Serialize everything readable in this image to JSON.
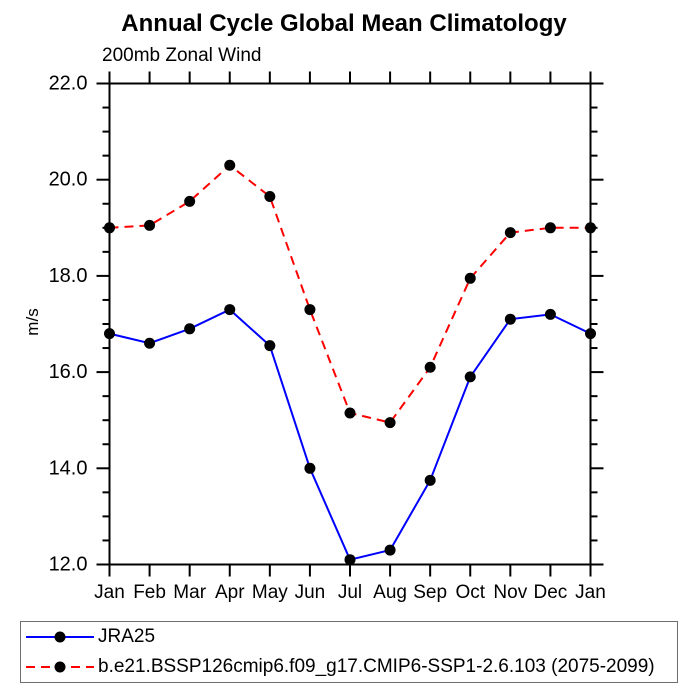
{
  "page": {
    "background": "#ffffff"
  },
  "chart_data": {
    "type": "line",
    "title": "Annual Cycle Global Mean Climatology",
    "subtitle": "200mb Zonal Wind",
    "ylabel": "m/s",
    "xlabel": "",
    "categories": [
      "Jan",
      "Feb",
      "Mar",
      "Apr",
      "May",
      "Jun",
      "Jul",
      "Aug",
      "Sep",
      "Oct",
      "Nov",
      "Dec",
      "Jan"
    ],
    "ylim": [
      12.0,
      22.0
    ],
    "ytick_major_values": [
      12,
      14,
      16,
      18,
      20,
      22
    ],
    "ytick_major_labels": [
      "12.0",
      "14.0",
      "16.0",
      "18.0",
      "20.0",
      "22.0"
    ],
    "ytick_minor_step": 0.5,
    "grid": false,
    "legend_position": "bottom",
    "axis_color": "#000000",
    "marker_color": "#000000",
    "series": [
      {
        "name": "JRA25",
        "color": "#0000ff",
        "line_style": "solid",
        "values": [
          16.8,
          16.6,
          16.9,
          17.3,
          16.55,
          14.0,
          12.1,
          12.3,
          13.75,
          15.9,
          17.1,
          17.2,
          16.8
        ]
      },
      {
        "name": "b.e21.BSSP126cmip6.f09_g17.CMIP6-SSP1-2.6.103 (2075-2099)",
        "color": "#ff0000",
        "line_style": "dashed",
        "values": [
          19.0,
          19.05,
          19.55,
          20.3,
          19.65,
          17.3,
          15.15,
          14.95,
          16.1,
          17.95,
          18.9,
          19.0,
          19.0
        ]
      }
    ]
  }
}
